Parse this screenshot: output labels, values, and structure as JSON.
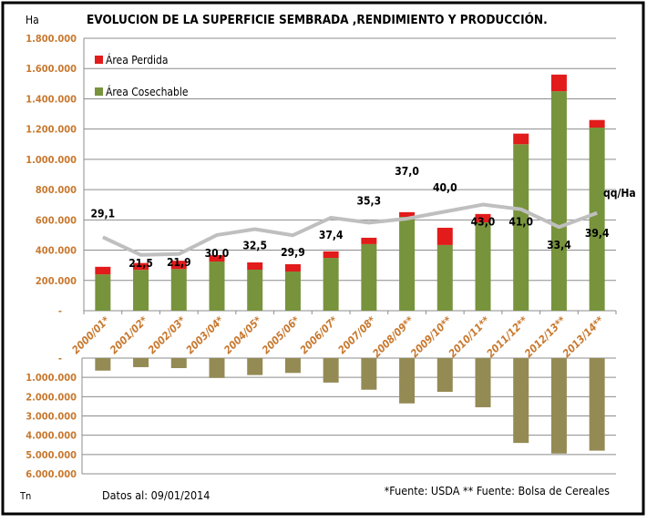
{
  "chart_data": [
    {
      "type": "bar",
      "stacked": true,
      "title": "EVOLUCION DE LA SUPERFICIE SEMBRADA ,RENDIMIENTO Y PRODUCCIÓN.",
      "ylabel": "Ha",
      "ylim": [
        0,
        1800000
      ],
      "yticks": [
        "-",
        "200.000",
        "400.000",
        "600.000",
        "800.000",
        "1.000.000",
        "1.200.000",
        "1.400.000",
        "1.600.000",
        "1.800.000"
      ],
      "grid": true,
      "legend_position": "top-left",
      "categories": [
        "2000/01*",
        "2001/02*",
        "2002/03*",
        "2003/04*",
        "2004/05*",
        "2005/06*",
        "2006/07*",
        "2007/08*",
        "2008/09**",
        "2009/10**",
        "2010/11**",
        "2011/12**",
        "2012/13**",
        "2013/14**"
      ],
      "series": [
        {
          "name": "Área Cosechable",
          "color": "#77933c",
          "values": [
            240000,
            270000,
            275000,
            325000,
            271000,
            259000,
            349000,
            440000,
            620000,
            434000,
            584000,
            1100000,
            1450000,
            1210000
          ]
        },
        {
          "name": "Área Perdida",
          "color": "#e21b1b",
          "values": [
            50000,
            45000,
            55000,
            42000,
            48000,
            48000,
            43000,
            42000,
            31000,
            114000,
            55000,
            70000,
            110000,
            50000
          ]
        }
      ],
      "line": {
        "label": "qq/Ha",
        "color": "#bfbfbf",
        "y2lim": [
          -2.3,
          114
        ],
        "values": [
          29.1,
          21.5,
          21.9,
          30.0,
          32.5,
          29.9,
          37.4,
          35.3,
          37.0,
          40.0,
          43.0,
          41.0,
          33.4,
          39.4
        ],
        "data_labels": [
          "29,1",
          "21,5",
          "21,9",
          "30,0",
          "32,5",
          "29,9",
          "37,4",
          "35,3",
          "37,0",
          "40,0",
          "43,0",
          "41,0",
          "33,4",
          "39,4"
        ]
      }
    },
    {
      "type": "bar",
      "orientation": "downward",
      "ylabel": "Tn",
      "ylim": [
        0,
        6000000
      ],
      "yticks": [
        "-",
        "1.000.000",
        "2.000.000",
        "3.000.000",
        "4.000.000",
        "5.000.000",
        "6.000.000"
      ],
      "grid": true,
      "color": "#948a54",
      "values": [
        650000,
        470000,
        520000,
        1030000,
        880000,
        770000,
        1270000,
        1640000,
        2350000,
        1750000,
        2550000,
        4400000,
        4950000,
        4800000
      ]
    }
  ],
  "footer": {
    "date_note": "Datos al: 09/01/2014",
    "source_note": "*Fuente: USDA ** Fuente: Bolsa de Cereales"
  }
}
